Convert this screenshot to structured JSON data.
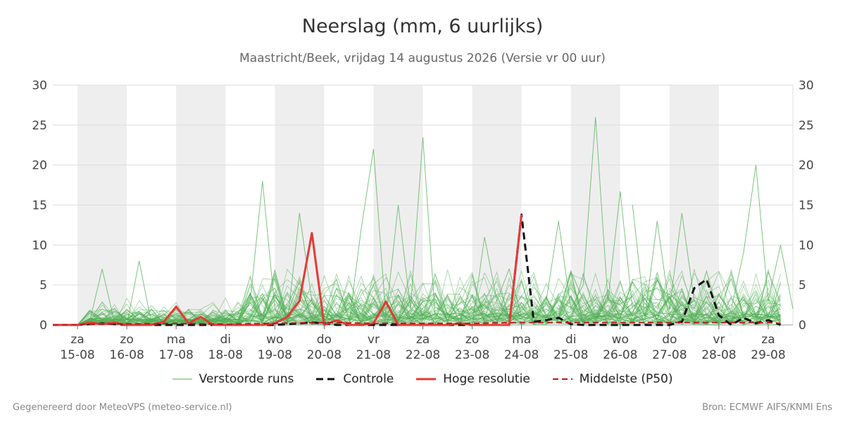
{
  "chart_data": {
    "type": "line",
    "title": "Neerslag (mm, 6 uurlijks)",
    "subtitle": "Maastricht/Beek, vrijdag 14 augustus 2026 (Versie vr 00 uur)",
    "ylim": [
      0,
      30
    ],
    "yticks": [
      0,
      5,
      10,
      15,
      20,
      25,
      30
    ],
    "grid": true,
    "x_unit": "6-hour steps from 2026-08-14 12:00",
    "xlim": [
      0,
      60
    ],
    "shaded_days": [
      "15-08",
      "17-08",
      "19-08",
      "21-08",
      "23-08",
      "25-08",
      "27-08"
    ],
    "xticks": [
      {
        "x": 2,
        "day": "za",
        "date": "15-08"
      },
      {
        "x": 6,
        "day": "zo",
        "date": "16-08"
      },
      {
        "x": 10,
        "day": "ma",
        "date": "17-08"
      },
      {
        "x": 14,
        "day": "di",
        "date": "18-08"
      },
      {
        "x": 18,
        "day": "wo",
        "date": "19-08"
      },
      {
        "x": 22,
        "day": "do",
        "date": "20-08"
      },
      {
        "x": 26,
        "day": "vr",
        "date": "21-08"
      },
      {
        "x": 30,
        "day": "za",
        "date": "22-08"
      },
      {
        "x": 34,
        "day": "zo",
        "date": "23-08"
      },
      {
        "x": 38,
        "day": "ma",
        "date": "24-08"
      },
      {
        "x": 42,
        "day": "di",
        "date": "25-08"
      },
      {
        "x": 46,
        "day": "wo",
        "date": "26-08"
      },
      {
        "x": 50,
        "day": "do",
        "date": "27-08"
      },
      {
        "x": 54,
        "day": "vr",
        "date": "28-08"
      },
      {
        "x": 58,
        "day": "za",
        "date": "29-08"
      }
    ],
    "ensemble_highlights": [
      [
        [
          2,
          0
        ],
        [
          3,
          0.5
        ],
        [
          4,
          7
        ],
        [
          5,
          0.3
        ],
        [
          6,
          0.2
        ],
        [
          7,
          0
        ],
        [
          8,
          0
        ],
        [
          9,
          0
        ],
        [
          10,
          0
        ]
      ],
      [
        [
          6,
          0
        ],
        [
          7,
          8
        ],
        [
          8,
          0.2
        ],
        [
          9,
          0.1
        ]
      ],
      [
        [
          15,
          0
        ],
        [
          16,
          3
        ],
        [
          17,
          18
        ],
        [
          18,
          2
        ],
        [
          19,
          0
        ],
        [
          20,
          14
        ],
        [
          21,
          3
        ],
        [
          22,
          1
        ]
      ],
      [
        [
          24,
          0
        ],
        [
          25,
          12
        ],
        [
          26,
          22
        ],
        [
          27,
          1
        ],
        [
          28,
          15
        ],
        [
          29,
          2
        ],
        [
          30,
          23.5
        ],
        [
          31,
          1
        ]
      ],
      [
        [
          34,
          0
        ],
        [
          35,
          11
        ],
        [
          36,
          3
        ],
        [
          37,
          7
        ],
        [
          38,
          1
        ]
      ],
      [
        [
          40,
          3
        ],
        [
          41,
          13
        ],
        [
          42,
          2
        ],
        [
          43,
          5
        ],
        [
          44,
          26
        ],
        [
          45,
          3
        ],
        [
          46,
          16.7
        ],
        [
          47,
          2
        ]
      ],
      [
        [
          47,
          15
        ],
        [
          48,
          1
        ],
        [
          49,
          13
        ],
        [
          50,
          2
        ],
        [
          51,
          14
        ],
        [
          52,
          3
        ]
      ],
      [
        [
          55,
          2
        ],
        [
          56,
          9
        ],
        [
          57,
          20
        ],
        [
          58,
          3
        ],
        [
          59,
          10
        ],
        [
          60,
          2
        ]
      ]
    ],
    "series": [
      {
        "name": "Verstoorde runs",
        "color": "#4caf50",
        "dash": "",
        "width": 1
      },
      {
        "name": "Controle",
        "color": "#111111",
        "dash": "10,6",
        "width": 3,
        "values": [
          [
            0,
            0
          ],
          [
            1,
            0
          ],
          [
            2,
            0
          ],
          [
            3,
            0.1
          ],
          [
            4,
            0.2
          ],
          [
            5,
            0.1
          ],
          [
            6,
            0
          ],
          [
            7,
            0
          ],
          [
            8,
            0
          ],
          [
            9,
            0
          ],
          [
            10,
            0
          ],
          [
            11,
            0
          ],
          [
            12,
            0
          ],
          [
            13,
            0
          ],
          [
            14,
            0
          ],
          [
            15,
            0
          ],
          [
            16,
            0
          ],
          [
            17,
            0
          ],
          [
            18,
            0
          ],
          [
            19,
            0.1
          ],
          [
            20,
            0.2
          ],
          [
            21,
            0.3
          ],
          [
            22,
            0.2
          ],
          [
            23,
            0
          ],
          [
            24,
            0
          ],
          [
            25,
            0
          ],
          [
            26,
            0
          ],
          [
            27,
            0
          ],
          [
            28,
            0
          ],
          [
            29,
            0
          ],
          [
            30,
            0
          ],
          [
            31,
            0
          ],
          [
            32,
            0
          ],
          [
            33,
            0
          ],
          [
            34,
            0
          ],
          [
            35,
            0
          ],
          [
            36,
            0
          ],
          [
            37,
            0
          ],
          [
            38,
            13.8
          ],
          [
            39,
            0.4
          ],
          [
            40,
            0.6
          ],
          [
            41,
            0.9
          ],
          [
            42,
            0.1
          ],
          [
            43,
            0
          ],
          [
            44,
            0
          ],
          [
            45,
            0
          ],
          [
            46,
            0
          ],
          [
            47,
            0
          ],
          [
            48,
            0
          ],
          [
            49,
            0
          ],
          [
            50,
            0
          ],
          [
            51,
            0.4
          ],
          [
            52,
            4.6
          ],
          [
            53,
            5.7
          ],
          [
            54,
            1.2
          ],
          [
            55,
            0
          ],
          [
            56,
            0.9
          ],
          [
            57,
            0.2
          ],
          [
            58,
            0.6
          ],
          [
            59,
            0
          ]
        ]
      },
      {
        "name": "Hoge resolutie",
        "color": "#e53935",
        "dash": "",
        "width": 3,
        "values": [
          [
            0,
            0
          ],
          [
            1,
            0
          ],
          [
            2,
            0
          ],
          [
            3,
            0.3
          ],
          [
            4,
            0.1
          ],
          [
            5,
            0.3
          ],
          [
            6,
            0
          ],
          [
            7,
            0
          ],
          [
            8,
            0
          ],
          [
            9,
            0.4
          ],
          [
            10,
            2.3
          ],
          [
            11,
            0.2
          ],
          [
            12,
            1
          ],
          [
            13,
            0
          ],
          [
            14,
            0
          ],
          [
            15,
            0
          ],
          [
            16,
            0
          ],
          [
            17,
            0
          ],
          [
            18,
            0.2
          ],
          [
            19,
            1
          ],
          [
            20,
            3
          ],
          [
            21,
            11.5
          ],
          [
            22,
            0
          ],
          [
            23,
            0.6
          ],
          [
            24,
            0
          ],
          [
            25,
            0
          ],
          [
            26,
            0.2
          ],
          [
            27,
            2.9
          ],
          [
            28,
            0
          ],
          [
            29,
            0
          ],
          [
            30,
            0
          ],
          [
            31,
            0
          ],
          [
            32,
            0
          ],
          [
            33,
            0.2
          ],
          [
            34,
            0
          ],
          [
            35,
            0
          ],
          [
            36,
            0
          ],
          [
            37,
            0
          ],
          [
            38,
            13.8
          ]
        ]
      },
      {
        "name": "Middelste (P50)",
        "color": "#b71c1c",
        "dash": "8,5",
        "width": 2,
        "values": [
          [
            0,
            0
          ],
          [
            4,
            0.1
          ],
          [
            10,
            0.2
          ],
          [
            14,
            0.1
          ],
          [
            18,
            0.2
          ],
          [
            22,
            0.3
          ],
          [
            26,
            0.2
          ],
          [
            30,
            0.2
          ],
          [
            34,
            0.2
          ],
          [
            38,
            0.3
          ],
          [
            42,
            0.3
          ],
          [
            46,
            0.3
          ],
          [
            50,
            0.3
          ],
          [
            54,
            0.3
          ],
          [
            58,
            0.3
          ],
          [
            59,
            0.2
          ]
        ]
      }
    ]
  },
  "footer": {
    "left": "Gegenereerd door MeteoVPS (meteo-service.nl)",
    "right": "Bron: ECMWF AIFS/KNMI Ens"
  }
}
